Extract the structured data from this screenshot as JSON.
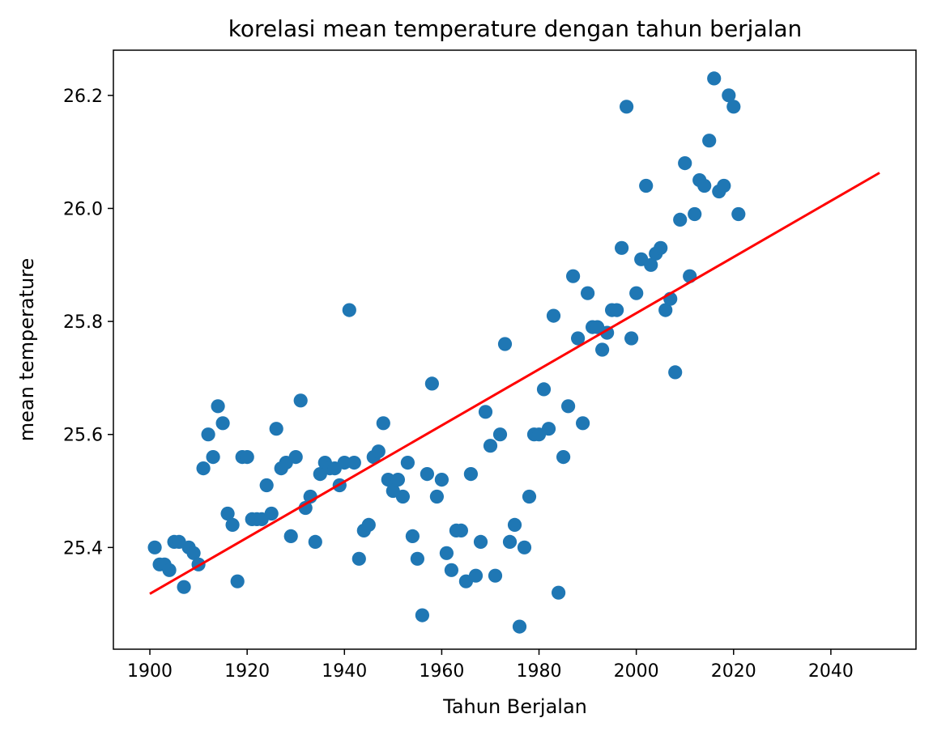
{
  "chart_data": {
    "type": "scatter",
    "title": "korelasi mean temperature dengan tahun berjalan",
    "xlabel": "Tahun Berjalan",
    "ylabel": "mean temperature",
    "xlim": [
      1892.5,
      2057.5
    ],
    "ylim": [
      25.22,
      26.28
    ],
    "xticks": [
      1900,
      1920,
      1940,
      1960,
      1980,
      2000,
      2020,
      2040
    ],
    "yticks": [
      25.4,
      25.6,
      25.8,
      26.0,
      26.2
    ],
    "grid": false,
    "legend": "none",
    "colors": {
      "points": "#1f77b4",
      "line": "#ff0000"
    },
    "series": [
      {
        "kind": "scatter",
        "points": [
          [
            1901,
            25.4
          ],
          [
            1902,
            25.37
          ],
          [
            1903,
            25.37
          ],
          [
            1904,
            25.36
          ],
          [
            1905,
            25.41
          ],
          [
            1906,
            25.41
          ],
          [
            1907,
            25.33
          ],
          [
            1908,
            25.4
          ],
          [
            1909,
            25.39
          ],
          [
            1910,
            25.37
          ],
          [
            1911,
            25.54
          ],
          [
            1912,
            25.6
          ],
          [
            1913,
            25.56
          ],
          [
            1914,
            25.65
          ],
          [
            1915,
            25.62
          ],
          [
            1916,
            25.46
          ],
          [
            1917,
            25.44
          ],
          [
            1918,
            25.34
          ],
          [
            1919,
            25.56
          ],
          [
            1920,
            25.56
          ],
          [
            1921,
            25.45
          ],
          [
            1922,
            25.45
          ],
          [
            1923,
            25.45
          ],
          [
            1924,
            25.51
          ],
          [
            1925,
            25.46
          ],
          [
            1926,
            25.61
          ],
          [
            1927,
            25.54
          ],
          [
            1928,
            25.55
          ],
          [
            1929,
            25.42
          ],
          [
            1930,
            25.56
          ],
          [
            1931,
            25.66
          ],
          [
            1932,
            25.47
          ],
          [
            1933,
            25.49
          ],
          [
            1934,
            25.41
          ],
          [
            1935,
            25.53
          ],
          [
            1936,
            25.55
          ],
          [
            1937,
            25.54
          ],
          [
            1938,
            25.54
          ],
          [
            1939,
            25.51
          ],
          [
            1940,
            25.55
          ],
          [
            1941,
            25.82
          ],
          [
            1942,
            25.55
          ],
          [
            1943,
            25.38
          ],
          [
            1944,
            25.43
          ],
          [
            1945,
            25.44
          ],
          [
            1946,
            25.56
          ],
          [
            1947,
            25.57
          ],
          [
            1948,
            25.62
          ],
          [
            1949,
            25.52
          ],
          [
            1950,
            25.5
          ],
          [
            1951,
            25.52
          ],
          [
            1952,
            25.49
          ],
          [
            1953,
            25.55
          ],
          [
            1954,
            25.42
          ],
          [
            1955,
            25.38
          ],
          [
            1956,
            25.28
          ],
          [
            1957,
            25.53
          ],
          [
            1958,
            25.69
          ],
          [
            1959,
            25.49
          ],
          [
            1960,
            25.52
          ],
          [
            1961,
            25.39
          ],
          [
            1962,
            25.36
          ],
          [
            1963,
            25.43
          ],
          [
            1964,
            25.43
          ],
          [
            1965,
            25.34
          ],
          [
            1966,
            25.53
          ],
          [
            1967,
            25.35
          ],
          [
            1968,
            25.41
          ],
          [
            1969,
            25.64
          ],
          [
            1970,
            25.58
          ],
          [
            1971,
            25.35
          ],
          [
            1972,
            25.6
          ],
          [
            1973,
            25.76
          ],
          [
            1974,
            25.41
          ],
          [
            1975,
            25.44
          ],
          [
            1976,
            25.26
          ],
          [
            1977,
            25.4
          ],
          [
            1978,
            25.49
          ],
          [
            1979,
            25.6
          ],
          [
            1980,
            25.6
          ],
          [
            1981,
            25.68
          ],
          [
            1982,
            25.61
          ],
          [
            1983,
            25.81
          ],
          [
            1984,
            25.32
          ],
          [
            1985,
            25.56
          ],
          [
            1986,
            25.65
          ],
          [
            1987,
            25.88
          ],
          [
            1988,
            25.77
          ],
          [
            1989,
            25.62
          ],
          [
            1990,
            25.85
          ],
          [
            1991,
            25.79
          ],
          [
            1992,
            25.79
          ],
          [
            1993,
            25.75
          ],
          [
            1994,
            25.78
          ],
          [
            1995,
            25.82
          ],
          [
            1996,
            25.82
          ],
          [
            1997,
            25.93
          ],
          [
            1998,
            26.18
          ],
          [
            1999,
            25.77
          ],
          [
            2000,
            25.85
          ],
          [
            2001,
            25.91
          ],
          [
            2002,
            26.04
          ],
          [
            2003,
            25.9
          ],
          [
            2004,
            25.92
          ],
          [
            2005,
            25.93
          ],
          [
            2006,
            25.82
          ],
          [
            2007,
            25.84
          ],
          [
            2008,
            25.71
          ],
          [
            2009,
            25.98
          ],
          [
            2010,
            26.08
          ],
          [
            2011,
            25.88
          ],
          [
            2012,
            25.99
          ],
          [
            2013,
            26.05
          ],
          [
            2014,
            26.04
          ],
          [
            2015,
            26.12
          ],
          [
            2016,
            26.23
          ],
          [
            2017,
            26.03
          ],
          [
            2018,
            26.04
          ],
          [
            2019,
            26.2
          ],
          [
            2020,
            26.18
          ],
          [
            2021,
            25.99
          ]
        ]
      },
      {
        "kind": "line",
        "points": [
          [
            1900,
            25.318
          ],
          [
            2050,
            26.063
          ]
        ]
      }
    ]
  }
}
